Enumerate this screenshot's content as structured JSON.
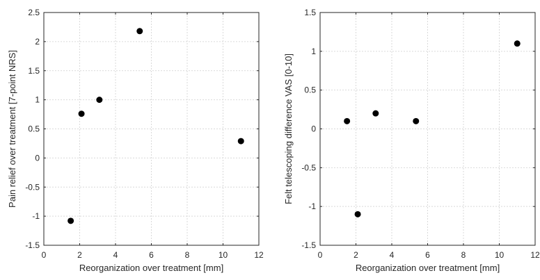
{
  "chart_data": [
    {
      "type": "scatter",
      "xlabel": "Reorganization over treatment [mm]",
      "ylabel": "Pain relief over treatment [7-point NRS]",
      "xlim": [
        0,
        12
      ],
      "ylim": [
        -1.5,
        2.5
      ],
      "xticks": [
        0,
        2,
        4,
        6,
        8,
        10,
        12
      ],
      "yticks": [
        -1.5,
        -1,
        -0.5,
        0,
        0.5,
        1,
        1.5,
        2,
        2.5
      ],
      "grid": true,
      "marker_color": "#000000",
      "points": [
        {
          "x": 1.5,
          "y": -1.08
        },
        {
          "x": 2.1,
          "y": 0.76
        },
        {
          "x": 3.1,
          "y": 1.0
        },
        {
          "x": 5.35,
          "y": 2.18
        },
        {
          "x": 11.0,
          "y": 0.29
        }
      ]
    },
    {
      "type": "scatter",
      "xlabel": "Reorganization over treatment [mm]",
      "ylabel": "Felt telescoping difference VAS [0-10]",
      "xlim": [
        0,
        12
      ],
      "ylim": [
        -1.5,
        1.5
      ],
      "xticks": [
        0,
        2,
        4,
        6,
        8,
        10,
        12
      ],
      "yticks": [
        -1.5,
        -1,
        -0.5,
        0,
        0.5,
        1,
        1.5
      ],
      "grid": true,
      "marker_color": "#000000",
      "points": [
        {
          "x": 1.5,
          "y": 0.1
        },
        {
          "x": 2.1,
          "y": -1.1
        },
        {
          "x": 3.1,
          "y": 0.2
        },
        {
          "x": 5.35,
          "y": 0.1
        },
        {
          "x": 11.0,
          "y": 1.1
        }
      ]
    }
  ]
}
